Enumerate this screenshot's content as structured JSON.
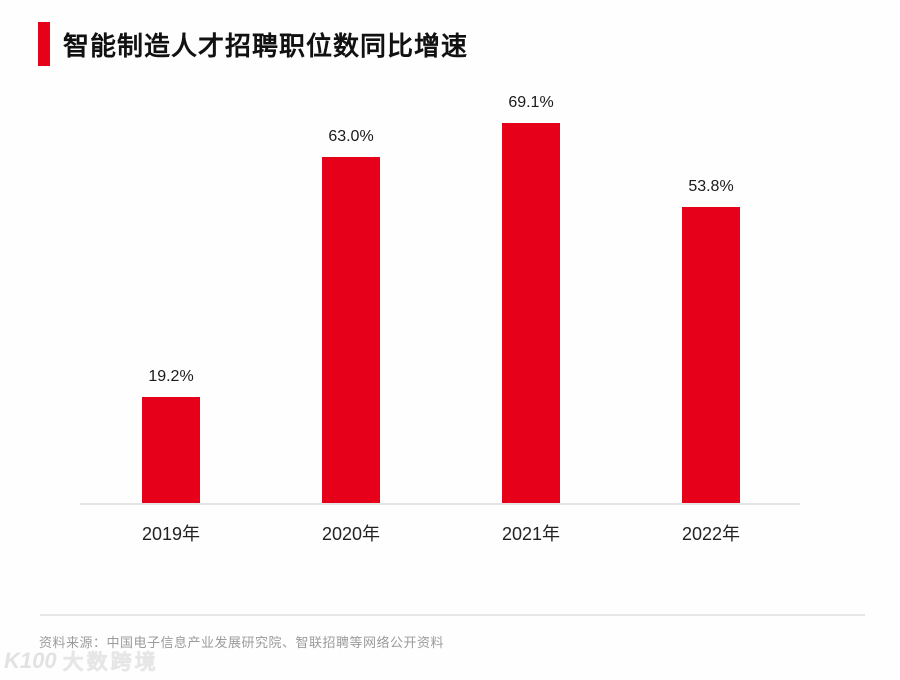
{
  "header": {
    "title": "智能制造人才招聘职位数同比增速"
  },
  "chart_data": {
    "type": "bar",
    "title": "智能制造人才招聘职位数同比增速",
    "categories": [
      "2019年",
      "2020年",
      "2021年",
      "2022年"
    ],
    "values": [
      19.2,
      63.0,
      69.1,
      53.8
    ],
    "value_labels": [
      "19.2%",
      "63.0%",
      "69.1%",
      "53.8%"
    ],
    "bar_color": "#e60019",
    "xlabel": "",
    "ylabel": "",
    "ylim": [
      0,
      73.5
    ],
    "grid": false,
    "legend_position": "none",
    "value_labels_position": "above-bars"
  },
  "footer": {
    "source": "资料来源：中国电子信息产业发展研究院、智联招聘等网络公开资料",
    "watermark_logo": "K100",
    "watermark_text": "大数跨境"
  },
  "colors": {
    "accent": "#e60019",
    "title_text": "#111111",
    "axis_line": "#e4e4e4",
    "source_text": "#9b9b9b"
  }
}
